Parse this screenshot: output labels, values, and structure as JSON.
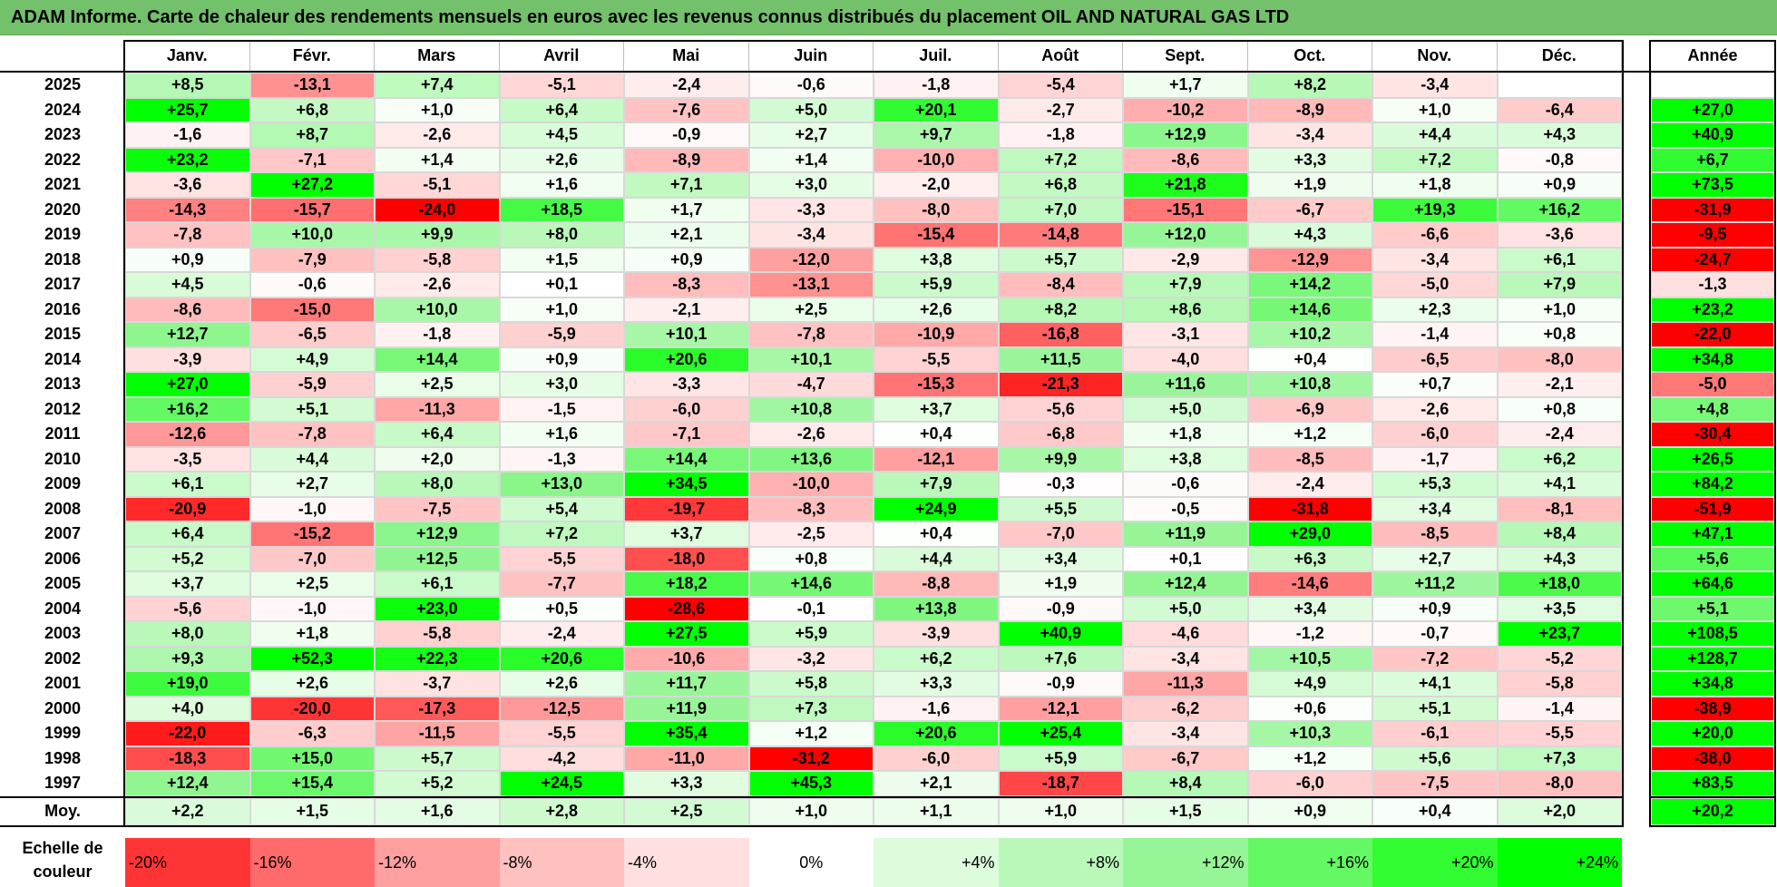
{
  "title": "ADAM Informe. Carte de chaleur des rendements mensuels en euros avec les revenus connus distribués du placement OIL AND NATURAL GAS LTD",
  "colors": {
    "title_bg": "#74c16c",
    "max_green": "#00ff00",
    "max_red": "#ff0000",
    "neutral": "#ffffff"
  },
  "chart_data": {
    "type": "heatmap",
    "columns": [
      "Janv.",
      "Févr.",
      "Mars",
      "Avril",
      "Mai",
      "Juin",
      "Juil.",
      "Août",
      "Sept.",
      "Oct.",
      "Nov.",
      "Déc."
    ],
    "year_header": "Année",
    "rows": [
      {
        "year": "2025",
        "values": [
          "+8,5",
          "-13,1",
          "+7,4",
          "-5,1",
          "-2,4",
          "-0,6",
          "-1,8",
          "-5,4",
          "+1,7",
          "+8,2",
          "-3,4",
          ""
        ],
        "annual": ""
      },
      {
        "year": "2024",
        "values": [
          "+25,7",
          "+6,8",
          "+1,0",
          "+6,4",
          "-7,6",
          "+5,0",
          "+20,1",
          "-2,7",
          "-10,2",
          "-8,9",
          "+1,0",
          "-6,4"
        ],
        "annual": "+27,0"
      },
      {
        "year": "2023",
        "values": [
          "-1,6",
          "+8,7",
          "-2,6",
          "+4,5",
          "-0,9",
          "+2,7",
          "+9,7",
          "-1,8",
          "+12,9",
          "-3,4",
          "+4,4",
          "+4,3"
        ],
        "annual": "+40,9"
      },
      {
        "year": "2022",
        "values": [
          "+23,2",
          "-7,1",
          "+1,4",
          "+2,6",
          "-8,9",
          "+1,4",
          "-10,0",
          "+7,2",
          "-8,6",
          "+3,3",
          "+7,2",
          "-0,8"
        ],
        "annual": "+6,7"
      },
      {
        "year": "2021",
        "values": [
          "-3,6",
          "+27,2",
          "-5,1",
          "+1,6",
          "+7,1",
          "+3,0",
          "-2,0",
          "+6,8",
          "+21,8",
          "+1,9",
          "+1,8",
          "+0,9"
        ],
        "annual": "+73,5"
      },
      {
        "year": "2020",
        "values": [
          "-14,3",
          "-15,7",
          "-24,0",
          "+18,5",
          "+1,7",
          "-3,3",
          "-8,0",
          "+7,0",
          "-15,1",
          "-6,7",
          "+19,3",
          "+16,2"
        ],
        "annual": "-31,9"
      },
      {
        "year": "2019",
        "values": [
          "-7,8",
          "+10,0",
          "+9,9",
          "+8,0",
          "+2,1",
          "-3,4",
          "-15,4",
          "-14,8",
          "+12,0",
          "+4,3",
          "-6,6",
          "-3,6"
        ],
        "annual": "-9,5"
      },
      {
        "year": "2018",
        "values": [
          "+0,9",
          "-7,9",
          "-5,8",
          "+1,5",
          "+0,9",
          "-12,0",
          "+3,8",
          "+5,7",
          "-2,9",
          "-12,9",
          "-3,4",
          "+6,1"
        ],
        "annual": "-24,7"
      },
      {
        "year": "2017",
        "values": [
          "+4,5",
          "-0,6",
          "-2,6",
          "+0,1",
          "-8,3",
          "-13,1",
          "+5,9",
          "-8,4",
          "+7,9",
          "+14,2",
          "-5,0",
          "+7,9"
        ],
        "annual": "-1,3"
      },
      {
        "year": "2016",
        "values": [
          "-8,6",
          "-15,0",
          "+10,0",
          "+1,0",
          "-2,1",
          "+2,5",
          "+2,6",
          "+8,2",
          "+8,6",
          "+14,6",
          "+2,3",
          "+1,0"
        ],
        "annual": "+23,2"
      },
      {
        "year": "2015",
        "values": [
          "+12,7",
          "-6,5",
          "-1,8",
          "-5,9",
          "+10,1",
          "-7,8",
          "-10,9",
          "-16,8",
          "-3,1",
          "+10,2",
          "-1,4",
          "+0,8"
        ],
        "annual": "-22,0"
      },
      {
        "year": "2014",
        "values": [
          "-3,9",
          "+4,9",
          "+14,4",
          "+0,9",
          "+20,6",
          "+10,1",
          "-5,5",
          "+11,5",
          "-4,0",
          "+0,4",
          "-6,5",
          "-8,0"
        ],
        "annual": "+34,8"
      },
      {
        "year": "2013",
        "values": [
          "+27,0",
          "-5,9",
          "+2,5",
          "+3,0",
          "-3,3",
          "-4,7",
          "-15,3",
          "-21,3",
          "+11,6",
          "+10,8",
          "+0,7",
          "-2,1"
        ],
        "annual": "-5,0"
      },
      {
        "year": "2012",
        "values": [
          "+16,2",
          "+5,1",
          "-11,3",
          "-1,5",
          "-6,0",
          "+10,8",
          "+3,7",
          "-5,6",
          "+5,0",
          "-6,9",
          "-2,6",
          "+0,8"
        ],
        "annual": "+4,8"
      },
      {
        "year": "2011",
        "values": [
          "-12,6",
          "-7,8",
          "+6,4",
          "+1,6",
          "-7,1",
          "-2,6",
          "+0,4",
          "-6,8",
          "+1,8",
          "+1,2",
          "-6,0",
          "-2,4"
        ],
        "annual": "-30,4"
      },
      {
        "year": "2010",
        "values": [
          "-3,5",
          "+4,4",
          "+2,0",
          "-1,3",
          "+14,4",
          "+13,6",
          "-12,1",
          "+9,9",
          "+3,8",
          "-8,5",
          "-1,7",
          "+6,2"
        ],
        "annual": "+26,5"
      },
      {
        "year": "2009",
        "values": [
          "+6,1",
          "+2,7",
          "+8,0",
          "+13,0",
          "+34,5",
          "-10,0",
          "+7,9",
          "-0,3",
          "-0,6",
          "-2,4",
          "+5,3",
          "+4,1"
        ],
        "annual": "+84,2"
      },
      {
        "year": "2008",
        "values": [
          "-20,9",
          "-1,0",
          "-7,5",
          "+5,4",
          "-19,7",
          "-8,3",
          "+24,9",
          "+5,5",
          "-0,5",
          "-31,8",
          "+3,4",
          "-8,1"
        ],
        "annual": "-51,9"
      },
      {
        "year": "2007",
        "values": [
          "+6,4",
          "-15,2",
          "+12,9",
          "+7,2",
          "+3,7",
          "-2,5",
          "+0,4",
          "-7,0",
          "+11,9",
          "+29,0",
          "-8,5",
          "+8,4"
        ],
        "annual": "+47,1"
      },
      {
        "year": "2006",
        "values": [
          "+5,2",
          "-7,0",
          "+12,5",
          "-5,5",
          "-18,0",
          "+0,8",
          "+4,4",
          "+3,4",
          "+0,1",
          "+6,3",
          "+2,7",
          "+4,3"
        ],
        "annual": "+5,6"
      },
      {
        "year": "2005",
        "values": [
          "+3,7",
          "+2,5",
          "+6,1",
          "-7,7",
          "+18,2",
          "+14,6",
          "-8,8",
          "+1,9",
          "+12,4",
          "-14,6",
          "+11,2",
          "+18,0"
        ],
        "annual": "+64,6"
      },
      {
        "year": "2004",
        "values": [
          "-5,6",
          "-1,0",
          "+23,0",
          "+0,5",
          "-28,6",
          "-0,1",
          "+13,8",
          "-0,9",
          "+5,0",
          "+3,4",
          "+0,9",
          "+3,5"
        ],
        "annual": "+5,1"
      },
      {
        "year": "2003",
        "values": [
          "+8,0",
          "+1,8",
          "-5,8",
          "-2,4",
          "+27,5",
          "+5,9",
          "-3,9",
          "+40,9",
          "-4,6",
          "-1,2",
          "-0,7",
          "+23,7"
        ],
        "annual": "+108,5"
      },
      {
        "year": "2002",
        "values": [
          "+9,3",
          "+52,3",
          "+22,3",
          "+20,6",
          "-10,6",
          "-3,2",
          "+6,2",
          "+7,6",
          "-3,4",
          "+10,5",
          "-7,2",
          "-5,2"
        ],
        "annual": "+128,7"
      },
      {
        "year": "2001",
        "values": [
          "+19,0",
          "+2,6",
          "-3,7",
          "+2,6",
          "+11,7",
          "+5,8",
          "+3,3",
          "-0,9",
          "-11,3",
          "+4,9",
          "+4,1",
          "-5,8"
        ],
        "annual": "+34,8"
      },
      {
        "year": "2000",
        "values": [
          "+4,0",
          "-20,0",
          "-17,3",
          "-12,5",
          "+11,9",
          "+7,3",
          "-1,6",
          "-12,1",
          "-6,2",
          "+0,6",
          "+5,1",
          "-1,4"
        ],
        "annual": "-38,9"
      },
      {
        "year": "1999",
        "values": [
          "-22,0",
          "-6,3",
          "-11,5",
          "-5,5",
          "+35,4",
          "+1,2",
          "+20,6",
          "+25,4",
          "-3,4",
          "+10,3",
          "-6,1",
          "-5,5"
        ],
        "annual": "+20,0"
      },
      {
        "year": "1998",
        "values": [
          "-18,3",
          "+15,0",
          "+5,7",
          "-4,2",
          "-11,0",
          "-31,2",
          "-6,0",
          "+5,9",
          "-6,7",
          "+1,2",
          "+5,6",
          "+7,3"
        ],
        "annual": "-38,0"
      },
      {
        "year": "1997",
        "values": [
          "+12,4",
          "+15,4",
          "+5,2",
          "+24,5",
          "+3,3",
          "+45,3",
          "+2,1",
          "-18,7",
          "+8,4",
          "-6,0",
          "-7,5",
          "-8,0"
        ],
        "annual": "+83,5"
      }
    ],
    "average": {
      "label": "Moy.",
      "values": [
        "+2,2",
        "+1,5",
        "+1,6",
        "+2,8",
        "+2,5",
        "+1,0",
        "+1,1",
        "+1,0",
        "+1,5",
        "+0,9",
        "+0,4",
        "+2,0"
      ],
      "annual": "+20,2"
    },
    "legend": {
      "title": "Echelle de couleur",
      "steps": [
        {
          "label": "-20%",
          "value": -20
        },
        {
          "label": "-16%",
          "value": -16
        },
        {
          "label": "-12%",
          "value": -12
        },
        {
          "label": "-8%",
          "value": -8
        },
        {
          "label": "-4%",
          "value": -4
        },
        {
          "label": "0%",
          "value": 0
        },
        {
          "label": "+4%",
          "value": 4
        },
        {
          "label": "+8%",
          "value": 8
        },
        {
          "label": "+12%",
          "value": 12
        },
        {
          "label": "+16%",
          "value": 16
        },
        {
          "label": "+20%",
          "value": 20
        },
        {
          "label": "+24%",
          "value": 24
        }
      ]
    }
  }
}
